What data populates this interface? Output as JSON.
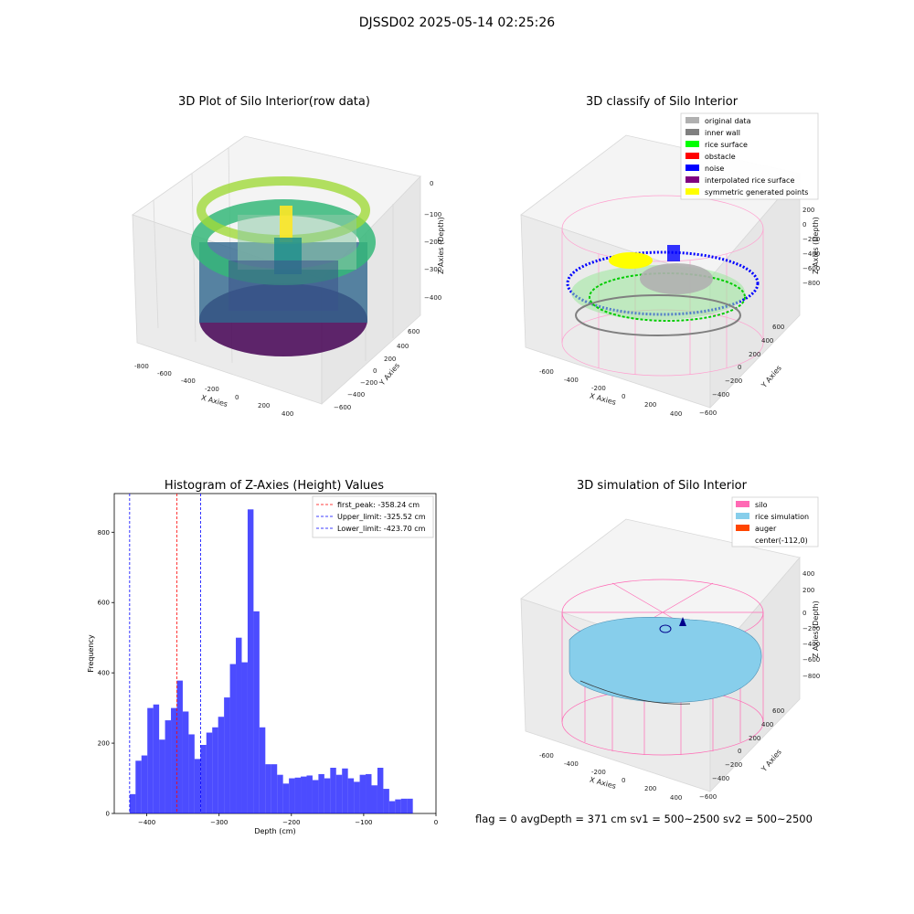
{
  "suptitle": "DJSSD02 2025-05-14 02:25:26",
  "panels": {
    "raw": {
      "title": "3D Plot of Silo Interior(row data)",
      "xlabel": "X Axies",
      "ylabel": "Y Axies",
      "zlabel": "Z Axies (Depth)",
      "xticks": [
        "-800",
        "-600",
        "-400",
        "-200",
        "0",
        "200",
        "400"
      ],
      "yticks": [
        "600",
        "400",
        "200",
        "0",
        "−200",
        "−400",
        "−600"
      ],
      "zticks": [
        "0",
        "−100",
        "−200",
        "−300",
        "−400"
      ]
    },
    "classify": {
      "title": "3D classify of Silo Interior",
      "xlabel": "X Axies",
      "ylabel": "Y Axies",
      "zlabel": "Z Axies (Depth)",
      "xticks": [
        "-600",
        "-400",
        "-200",
        "0",
        "200",
        "400"
      ],
      "yticks": [
        "600",
        "400",
        "200",
        "0",
        "−200",
        "−400",
        "−600"
      ],
      "zticks": [
        "200",
        "0",
        "−200",
        "−400",
        "−600",
        "−800"
      ],
      "legend": [
        {
          "label": "original data",
          "color": "#b0b0b0"
        },
        {
          "label": "inner wall",
          "color": "#808080"
        },
        {
          "label": "rice surface",
          "color": "#00ff00"
        },
        {
          "label": "obstacle",
          "color": "#ff0000"
        },
        {
          "label": "noise",
          "color": "#0000ff"
        },
        {
          "label": "interpolated rice surface",
          "color": "#800080"
        },
        {
          "label": "symmetric generated points",
          "color": "#ffff00"
        }
      ]
    },
    "simulation": {
      "title": "3D simulation of Silo Interior",
      "xlabel": "X Axies",
      "ylabel": "Y Axies",
      "zlabel": "Z Axies (Depth)",
      "xticks": [
        "-600",
        "-400",
        "-200",
        "0",
        "200",
        "400"
      ],
      "yticks": [
        "600",
        "400",
        "200",
        "0",
        "−200",
        "−400",
        "−600"
      ],
      "zticks": [
        "400",
        "200",
        "0",
        "−200",
        "−400",
        "−600",
        "−800"
      ],
      "legend": [
        {
          "label": "silo",
          "color": "#ff69b4"
        },
        {
          "label": "rice simulation",
          "color": "#87ceeb"
        },
        {
          "label": "auger",
          "color": "#ff4500"
        },
        {
          "label": "center(-112,0)",
          "color": "#ffffff"
        }
      ]
    }
  },
  "chart_data": {
    "type": "bar",
    "title": "Histogram of Z-Axies (Height) Values",
    "xlabel": "Depth (cm)",
    "ylabel": "Frequency",
    "xlim": [
      -445,
      0
    ],
    "ylim": [
      0,
      910
    ],
    "xticks": [
      -400,
      -300,
      -200,
      -100,
      0
    ],
    "xtick_labels": [
      "−400",
      "−300",
      "−200",
      "−100",
      "0"
    ],
    "yticks": [
      0,
      200,
      400,
      600,
      800
    ],
    "bin_start": -423.7,
    "bin_width": 8.16,
    "values": [
      55,
      150,
      165,
      300,
      310,
      210,
      265,
      300,
      378,
      290,
      225,
      155,
      195,
      230,
      245,
      275,
      330,
      425,
      500,
      430,
      865,
      575,
      245,
      140,
      140,
      110,
      85,
      100,
      102,
      105,
      108,
      95,
      112,
      100,
      130,
      110,
      128,
      100,
      90,
      110,
      112,
      80,
      130,
      70,
      35,
      40,
      42,
      42
    ],
    "bar_color": "#0000ff",
    "bar_alpha": 0.7,
    "vlines": [
      {
        "x": -358.24,
        "color": "#ff0000",
        "label": "first_peak: -358.24 cm"
      },
      {
        "x": -325.52,
        "color": "#0000ff",
        "label": "Upper_limit: -325.52 cm"
      },
      {
        "x": -423.7,
        "color": "#0000ff",
        "label": "Lower_limit: -423.70 cm"
      }
    ],
    "legend_position": "upper right"
  },
  "footer": "flag = 0     avgDepth = 371 cm  sv1 = 500~2500  sv2 = 500~2500"
}
